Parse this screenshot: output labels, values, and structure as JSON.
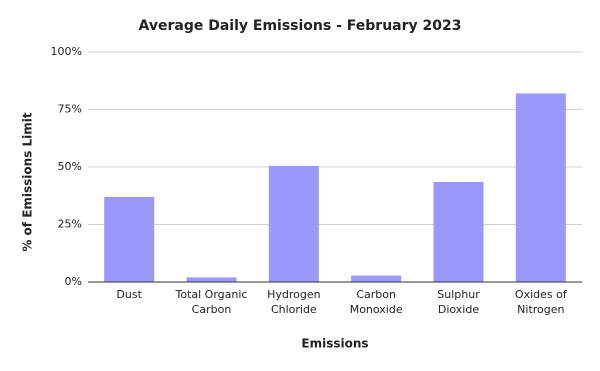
{
  "chart_data": {
    "type": "bar",
    "title": "Average Daily Emissions - February 2023",
    "x_label": "Emissions",
    "y_label": "% of Emissions Limit",
    "categories": [
      "Dust",
      "Total Organic Carbon",
      "Hydrogen Chloride",
      "Carbon Monoxide",
      "Sulphur Dioxide",
      "Oxides of Nitrogen"
    ],
    "values": [
      37,
      2,
      50.5,
      2.8,
      43.5,
      82
    ],
    "color": "#9a99fb",
    "ylim": [
      0,
      100
    ],
    "yticks": [
      {
        "value": 0,
        "label": "0%"
      },
      {
        "value": 25,
        "label": "25%"
      },
      {
        "value": 50,
        "label": "50%"
      },
      {
        "value": 75,
        "label": "75%"
      },
      {
        "value": 100,
        "label": "100%"
      }
    ],
    "grid": true
  }
}
